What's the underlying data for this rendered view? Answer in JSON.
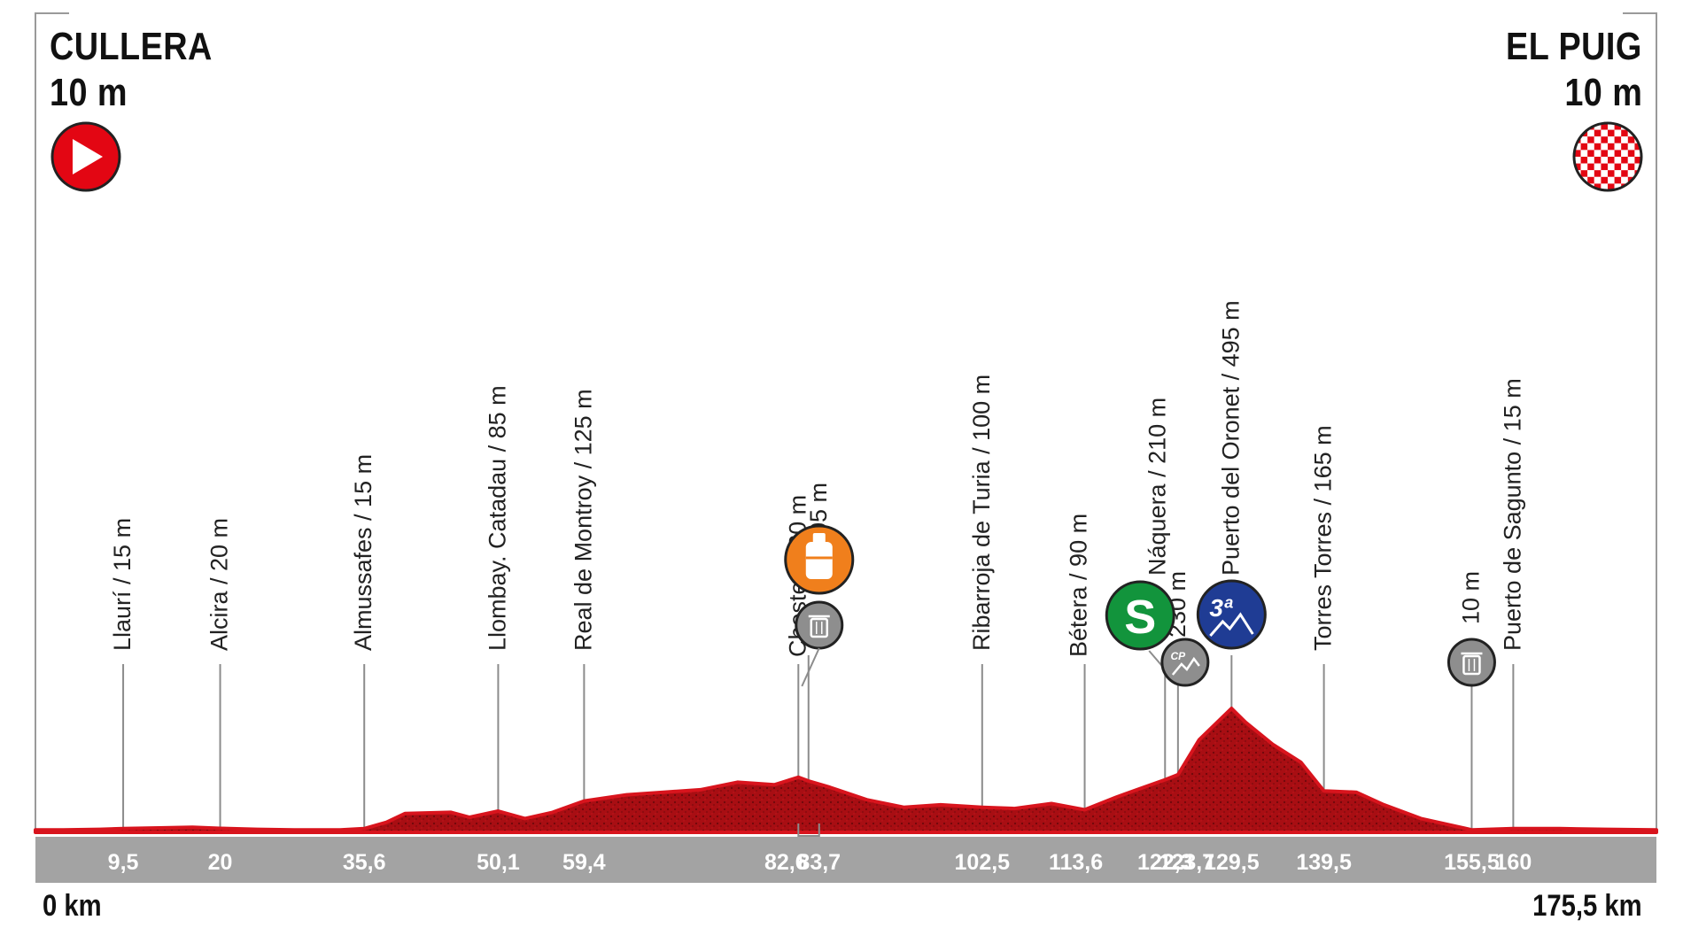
{
  "start": {
    "name": "CULLERA",
    "altitude": "10 m",
    "icon": "start-play-icon",
    "color": "#e30613"
  },
  "finish": {
    "name": "EL PUIG",
    "altitude": "10 m",
    "icon": "finish-checkered-flag-icon",
    "color": "#e30613"
  },
  "distance_labels": {
    "start": "0 km",
    "finish": "175,5 km"
  },
  "chart_data": {
    "type": "area",
    "x_unit": "km",
    "y_unit": "m",
    "xlim": [
      0,
      175.5
    ],
    "profile": [
      [
        0,
        10
      ],
      [
        3,
        10
      ],
      [
        7,
        12
      ],
      [
        9.5,
        15
      ],
      [
        14,
        18
      ],
      [
        17,
        20
      ],
      [
        20,
        16
      ],
      [
        24,
        12
      ],
      [
        28,
        10
      ],
      [
        33,
        10
      ],
      [
        35.6,
        15
      ],
      [
        38,
        40
      ],
      [
        40,
        75
      ],
      [
        45,
        80
      ],
      [
        47,
        60
      ],
      [
        50.1,
        85
      ],
      [
        53,
        55
      ],
      [
        56,
        80
      ],
      [
        59.4,
        125
      ],
      [
        64,
        150
      ],
      [
        68,
        160
      ],
      [
        72,
        170
      ],
      [
        76,
        200
      ],
      [
        80,
        190
      ],
      [
        82.6,
        220
      ],
      [
        83.7,
        205
      ],
      [
        86,
        180
      ],
      [
        90,
        130
      ],
      [
        94,
        100
      ],
      [
        98,
        110
      ],
      [
        102.5,
        100
      ],
      [
        106,
        95
      ],
      [
        110,
        115
      ],
      [
        113.6,
        90
      ],
      [
        117,
        140
      ],
      [
        120,
        180
      ],
      [
        122.3,
        210
      ],
      [
        123.7,
        230
      ],
      [
        126,
        370
      ],
      [
        129.5,
        495
      ],
      [
        131,
        440
      ],
      [
        134,
        350
      ],
      [
        137,
        280
      ],
      [
        139.5,
        165
      ],
      [
        143,
        160
      ],
      [
        146,
        110
      ],
      [
        150,
        55
      ],
      [
        155.5,
        10
      ],
      [
        160,
        15
      ],
      [
        165,
        15
      ],
      [
        170,
        12
      ],
      [
        175.5,
        10
      ]
    ],
    "x_ticks": [
      "9,5",
      "20",
      "35,6",
      "50,1",
      "59,4",
      "82,6",
      "83,7",
      "102,5",
      "113,6",
      "122,3",
      "123,7",
      "129,5",
      "139,5",
      "155,5",
      "160"
    ],
    "waypoints": [
      {
        "km": 9.5,
        "label": "Llaurí / 15 m"
      },
      {
        "km": 20,
        "label": "Alcira / 20 m"
      },
      {
        "km": 35.6,
        "label": "Almussafes / 15 m"
      },
      {
        "km": 50.1,
        "label": "Llombay. Catadau / 85 m"
      },
      {
        "km": 59.4,
        "label": "Real de Montroy / 125 m"
      },
      {
        "km": 82.6,
        "label": "Cheste / 220 m"
      },
      {
        "km": 83.7,
        "label": "205 m",
        "marker": "feed-zone"
      },
      {
        "km": 102.5,
        "label": "Ribarroja de Turia / 100 m"
      },
      {
        "km": 113.6,
        "label": "Bétera / 90 m"
      },
      {
        "km": 122.3,
        "label": "Náquera / 210 m",
        "marker": "intermediate-sprint"
      },
      {
        "km": 123.7,
        "label": "230 m",
        "marker": "climb-start"
      },
      {
        "km": 129.5,
        "label": "Puerto del Oronet / 495 m",
        "marker": "category-3-climb"
      },
      {
        "km": 139.5,
        "label": "Torres Torres / 165 m"
      },
      {
        "km": 155.5,
        "label": "10 m",
        "marker": "waste-zone"
      },
      {
        "km": 160,
        "label": "Puerto de Sagunto / 15 m"
      }
    ],
    "markers": {
      "feed_zone": {
        "km": 83.7,
        "icon": "bottle-icon",
        "color": "#f07f1c"
      },
      "waste_zone_1": {
        "km": 83.7,
        "icon": "trash-icon",
        "color": "#8e8e8e"
      },
      "intermediate_sprint": {
        "km": 122.3,
        "letter": "S",
        "icon": "sprint-icon",
        "color": "#12943c"
      },
      "climb_start": {
        "km": 123.7,
        "letters": "CP",
        "icon": "climb-start-icon",
        "color": "#8e8e8e"
      },
      "category_climb": {
        "km": 129.5,
        "category": "3ª",
        "icon": "mountain-icon",
        "color": "#1f3c94"
      },
      "waste_zone_2": {
        "km": 155.5,
        "icon": "trash-icon",
        "color": "#8e8e8e"
      }
    },
    "colors": {
      "profile_fill": "#b01015",
      "profile_dark": "#7a0a0e",
      "profile_top": "#d8141d",
      "axis_band": "#a3a3a3",
      "tick_text": "#ffffff"
    }
  }
}
